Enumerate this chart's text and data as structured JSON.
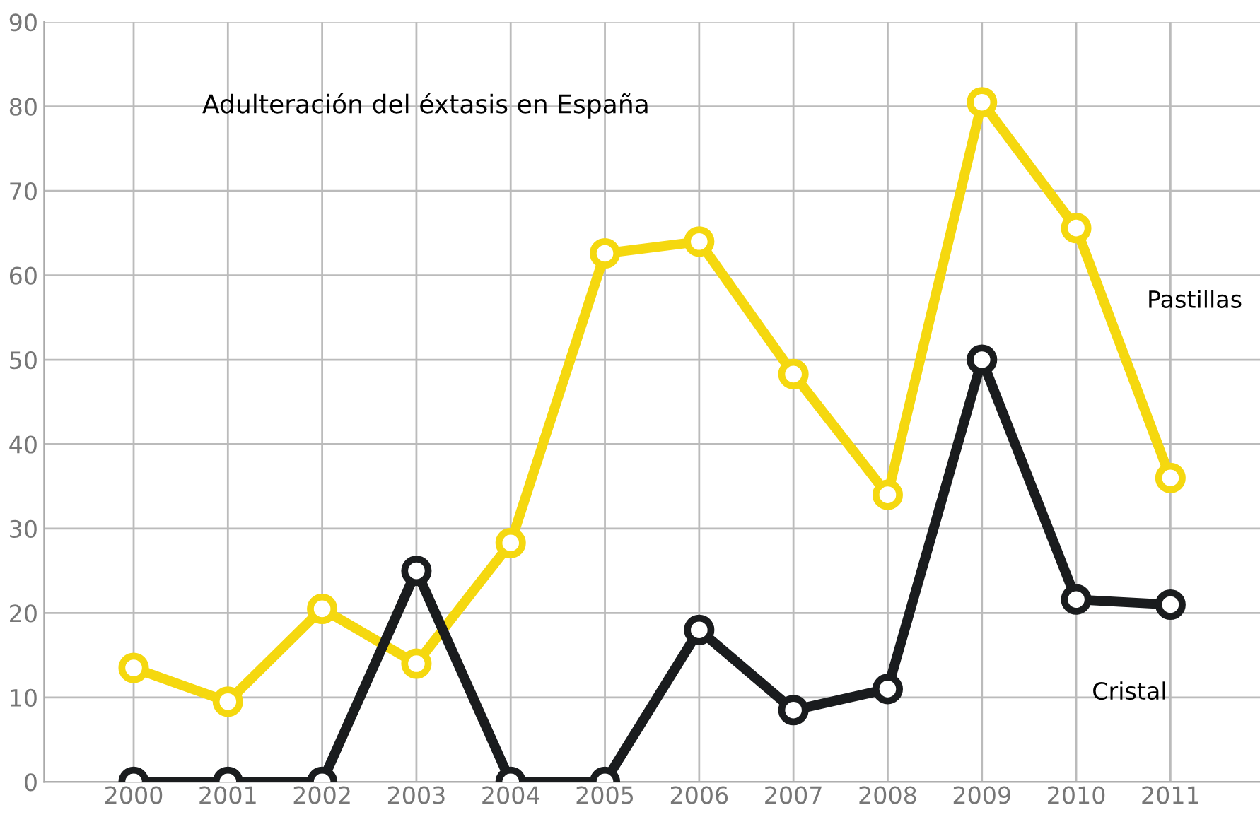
{
  "chart_data": {
    "type": "line",
    "title": "Adulteración del éxtasis en España",
    "categories": [
      "2000",
      "2001",
      "2002",
      "2003",
      "2004",
      "2005",
      "2006",
      "2007",
      "2008",
      "2009",
      "2010",
      "2011"
    ],
    "series": [
      {
        "name": "Pastillas",
        "color": "#f5d80f",
        "values": [
          13.5,
          9.5,
          20.5,
          14,
          28.3,
          62.6,
          64,
          48.3,
          34,
          80.5,
          65.6,
          36
        ]
      },
      {
        "name": "Cristal",
        "color": "#1a1c1e",
        "values": [
          0,
          0,
          0,
          25,
          0,
          0,
          18,
          8.5,
          11,
          50,
          21.6,
          21
        ]
      }
    ],
    "ylim": [
      0,
      90
    ],
    "yticks": [
      0,
      10,
      20,
      30,
      40,
      50,
      60,
      70,
      80,
      90
    ],
    "grid": true,
    "legend": false,
    "marker": "circle",
    "line_style": "solid"
  }
}
